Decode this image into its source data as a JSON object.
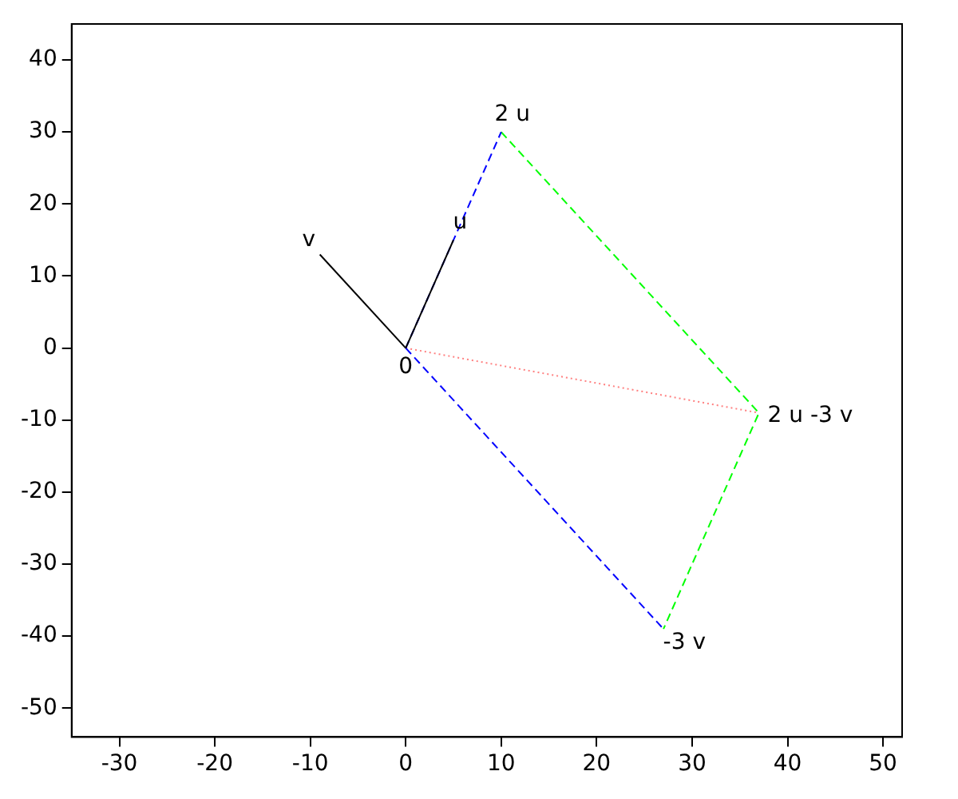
{
  "chart_data": {
    "type": "line",
    "xlim": [
      -35,
      52
    ],
    "ylim": [
      -54,
      45
    ],
    "xticks": [
      -30,
      -20,
      -10,
      0,
      10,
      20,
      30,
      40,
      50
    ],
    "yticks": [
      -50,
      -40,
      -30,
      -20,
      -10,
      0,
      10,
      20,
      30,
      40
    ],
    "grid": false,
    "legend": false,
    "marker": "none",
    "series": [
      {
        "color": "#000000",
        "line_style": "solid",
        "x": [
          0,
          -9
        ],
        "values": [
          0,
          13
        ]
      },
      {
        "color": "#000000",
        "line_style": "solid",
        "x": [
          0,
          5
        ],
        "values": [
          0,
          15
        ]
      },
      {
        "color": "#0000ff",
        "line_style": "dashed",
        "x": [
          0,
          10
        ],
        "values": [
          0,
          30
        ]
      },
      {
        "color": "#0000ff",
        "line_style": "dashed",
        "x": [
          0,
          27
        ],
        "values": [
          0,
          -39
        ]
      },
      {
        "color": "#00ff00",
        "line_style": "dashed",
        "x": [
          10,
          37,
          27
        ],
        "values": [
          30,
          -9,
          -39
        ]
      },
      {
        "color": "#ff8080",
        "line_style": "dotted",
        "x": [
          0,
          37
        ],
        "values": [
          0,
          -9
        ]
      }
    ],
    "annotations": [
      {
        "text": "v",
        "x": -9,
        "y": 13
      },
      {
        "text": "u",
        "x": 5,
        "y": 15
      },
      {
        "text": "2 u",
        "x": 10,
        "y": 30
      },
      {
        "text": "0",
        "x": 0,
        "y": 0
      },
      {
        "text": "2 u -3 v",
        "x": 37,
        "y": -9
      },
      {
        "text": "-3 v",
        "x": 27,
        "y": -39
      }
    ]
  }
}
